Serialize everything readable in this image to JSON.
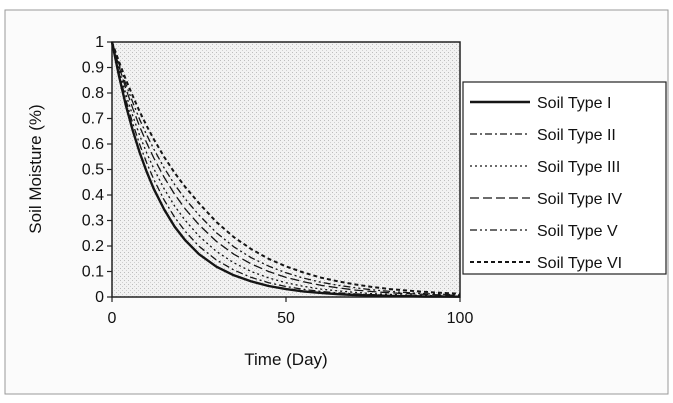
{
  "chart_data": {
    "type": "line",
    "title": "",
    "xlabel": "Time (Day)",
    "ylabel": "Soil Moisture (%)",
    "xlim": [
      0,
      100
    ],
    "ylim": [
      0,
      1
    ],
    "x_ticks": [
      "0",
      "50",
      "100"
    ],
    "y_ticks": [
      "0",
      "0.1",
      "0.2",
      "0.3",
      "0.4",
      "0.5",
      "0.6",
      "0.7",
      "0.8",
      "0.9",
      "1"
    ],
    "grid": false,
    "legend_position": "right",
    "x": [
      0,
      2,
      4,
      6,
      8,
      10,
      12,
      15,
      18,
      21,
      25,
      30,
      35,
      40,
      45,
      50,
      55,
      60,
      65,
      70,
      75,
      80,
      85,
      90,
      95,
      100
    ],
    "series": [
      {
        "name": "Soil Type I",
        "dash": "solid",
        "values": [
          1.0,
          0.867,
          0.751,
          0.651,
          0.565,
          0.49,
          0.424,
          0.343,
          0.276,
          0.223,
          0.168,
          0.119,
          0.085,
          0.061,
          0.043,
          0.031,
          0.022,
          0.016,
          0.011,
          0.008,
          0.006,
          0.004,
          0.003,
          0.002,
          0.002,
          0.001
        ]
      },
      {
        "name": "Soil Type II",
        "dash": "dash-dot",
        "values": [
          1.0,
          0.879,
          0.773,
          0.679,
          0.597,
          0.525,
          0.461,
          0.38,
          0.313,
          0.258,
          0.199,
          0.145,
          0.106,
          0.077,
          0.056,
          0.041,
          0.03,
          0.022,
          0.016,
          0.012,
          0.009,
          0.006,
          0.005,
          0.003,
          0.002,
          0.002
        ]
      },
      {
        "name": "Soil Type III",
        "dash": "dotted",
        "values": [
          1.0,
          0.892,
          0.795,
          0.709,
          0.632,
          0.564,
          0.503,
          0.424,
          0.357,
          0.301,
          0.239,
          0.179,
          0.134,
          0.1,
          0.075,
          0.056,
          0.042,
          0.031,
          0.024,
          0.018,
          0.013,
          0.01,
          0.007,
          0.006,
          0.004,
          0.003
        ]
      },
      {
        "name": "Soil Type IV",
        "dash": "long-dash",
        "values": [
          1.0,
          0.904,
          0.817,
          0.738,
          0.667,
          0.603,
          0.545,
          0.469,
          0.403,
          0.346,
          0.283,
          0.218,
          0.168,
          0.13,
          0.1,
          0.077,
          0.06,
          0.046,
          0.036,
          0.027,
          0.021,
          0.016,
          0.013,
          0.01,
          0.008,
          0.006
        ]
      },
      {
        "name": "Soil Type V",
        "dash": "dash-dot-dot",
        "values": [
          1.0,
          0.913,
          0.834,
          0.762,
          0.695,
          0.635,
          0.58,
          0.506,
          0.441,
          0.385,
          0.321,
          0.252,
          0.197,
          0.154,
          0.121,
          0.095,
          0.074,
          0.058,
          0.046,
          0.036,
          0.028,
          0.022,
          0.017,
          0.013,
          0.011,
          0.008
        ]
      },
      {
        "name": "Soil Type VI",
        "dash": "short-dash",
        "values": [
          1.0,
          0.923,
          0.852,
          0.787,
          0.726,
          0.67,
          0.619,
          0.549,
          0.487,
          0.432,
          0.368,
          0.294,
          0.235,
          0.188,
          0.15,
          0.12,
          0.096,
          0.076,
          0.061,
          0.049,
          0.039,
          0.031,
          0.025,
          0.02,
          0.016,
          0.013
        ]
      }
    ]
  }
}
